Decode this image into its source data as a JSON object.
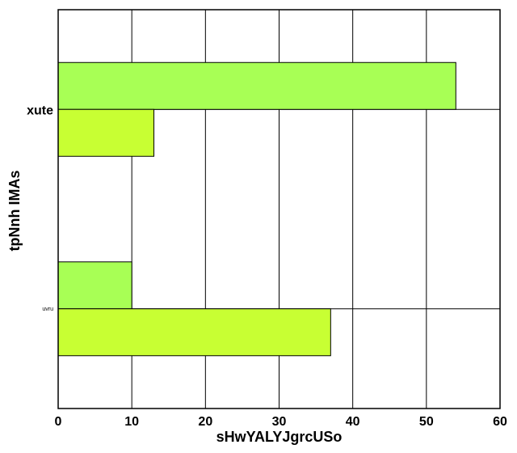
{
  "chart_data": {
    "type": "bar",
    "orientation": "horizontal",
    "title": "",
    "xlabel": "sHwYALYJgrcUSo",
    "ylabel": "tpNnh IMAs",
    "xlim": [
      0,
      60
    ],
    "xticks": [
      0,
      10,
      20,
      30,
      40,
      50,
      60
    ],
    "categories": [
      "xute",
      "uvru"
    ],
    "series": [
      {
        "color": "#a8ff55",
        "values": [
          54,
          10
        ]
      },
      {
        "color": "#c8ff33",
        "values": [
          13,
          37
        ]
      }
    ],
    "grid": true,
    "legend": "none"
  }
}
